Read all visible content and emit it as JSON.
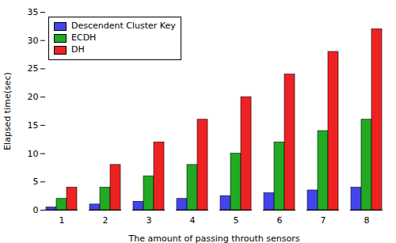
{
  "chart_data": {
    "type": "bar",
    "xlabel": "The amount of passing throuth sensors",
    "ylabel": "Elapsed time(sec)",
    "categories": [
      1,
      2,
      3,
      4,
      5,
      6,
      7,
      8
    ],
    "series": [
      {
        "name": "Descendent Cluster Key",
        "color": "#4444ee",
        "values": [
          0.5,
          1.0,
          1.5,
          2.0,
          2.5,
          3.0,
          3.5,
          4.0
        ]
      },
      {
        "name": "ECDH",
        "color": "#22aa22",
        "values": [
          2.0,
          4.0,
          6.0,
          8.0,
          10.0,
          12.0,
          14.0,
          16.0
        ]
      },
      {
        "name": "DH",
        "color": "#ee2222",
        "values": [
          4.0,
          8.0,
          12.0,
          16.0,
          20.0,
          24.0,
          28.0,
          32.0
        ]
      }
    ],
    "ylim": [
      0,
      35
    ],
    "yticks": [
      0,
      5,
      10,
      15,
      20,
      25,
      30,
      35
    ],
    "legend": "upper left"
  }
}
